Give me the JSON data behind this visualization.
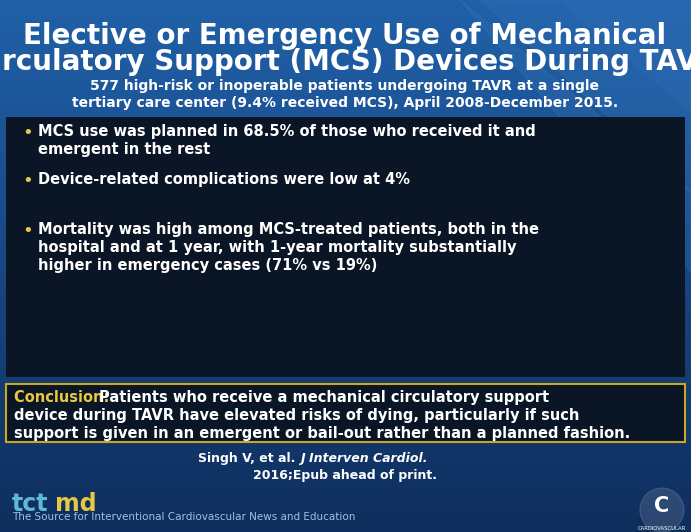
{
  "title_line1": "Elective or Emergency Use of Mechanical",
  "title_line2": "Circulatory Support (MCS) Devices During TAVR",
  "subtitle_line1": "577 high-risk or inoperable patients undergoing TAVR at a single",
  "subtitle_line2": "tertiary care center (9.4% received MCS), April 2008-December 2015.",
  "bullet1_line1": "MCS use was planned in 68.5% of those who received it and",
  "bullet1_line2": "emergent in the rest",
  "bullet2": "Device-related complications were low at 4%",
  "bullet3_line1": "Mortality was high among MCS-treated patients, both in the",
  "bullet3_line2": "hospital and at 1 year, with 1-year mortality substantially",
  "bullet3_line3": "higher in emergency cases (71% vs 19%)",
  "conclusion_label": "Conclusion: ",
  "conclusion_body_line1": "Patients who receive a mechanical circulatory support",
  "conclusion_body_line2": "device during TAVR have elevated risks of dying, particularly if such",
  "conclusion_body_line3": "support is given in an emergent or bail-out rather than a planned fashion.",
  "citation_normal": "Singh V, et al. ",
  "citation_italic": "J Interven Cardiol.",
  "citation_line2": "2016;Epub ahead of print.",
  "footer_text": "The Source for Interventional Cardiovascular News and Education",
  "bg_top_color": "#2060a8",
  "bg_bottom_color": "#0e2d5c",
  "dark_box_color": "#0a1525",
  "title_color": "#ffffff",
  "subtitle_color": "#ffffff",
  "bullet_color": "#ffffff",
  "bullet_dot_color": "#e8c840",
  "conclusion_label_color": "#e8c840",
  "conclusion_text_color": "#ffffff",
  "conclusion_box_color": "#0a1525",
  "conclusion_border_color": "#c8a820",
  "citation_color": "#ffffff",
  "footer_color": "#a0c0e0",
  "tct_color": "#60b8d8",
  "md_color": "#e8c840",
  "diag_color": "#3070b8"
}
